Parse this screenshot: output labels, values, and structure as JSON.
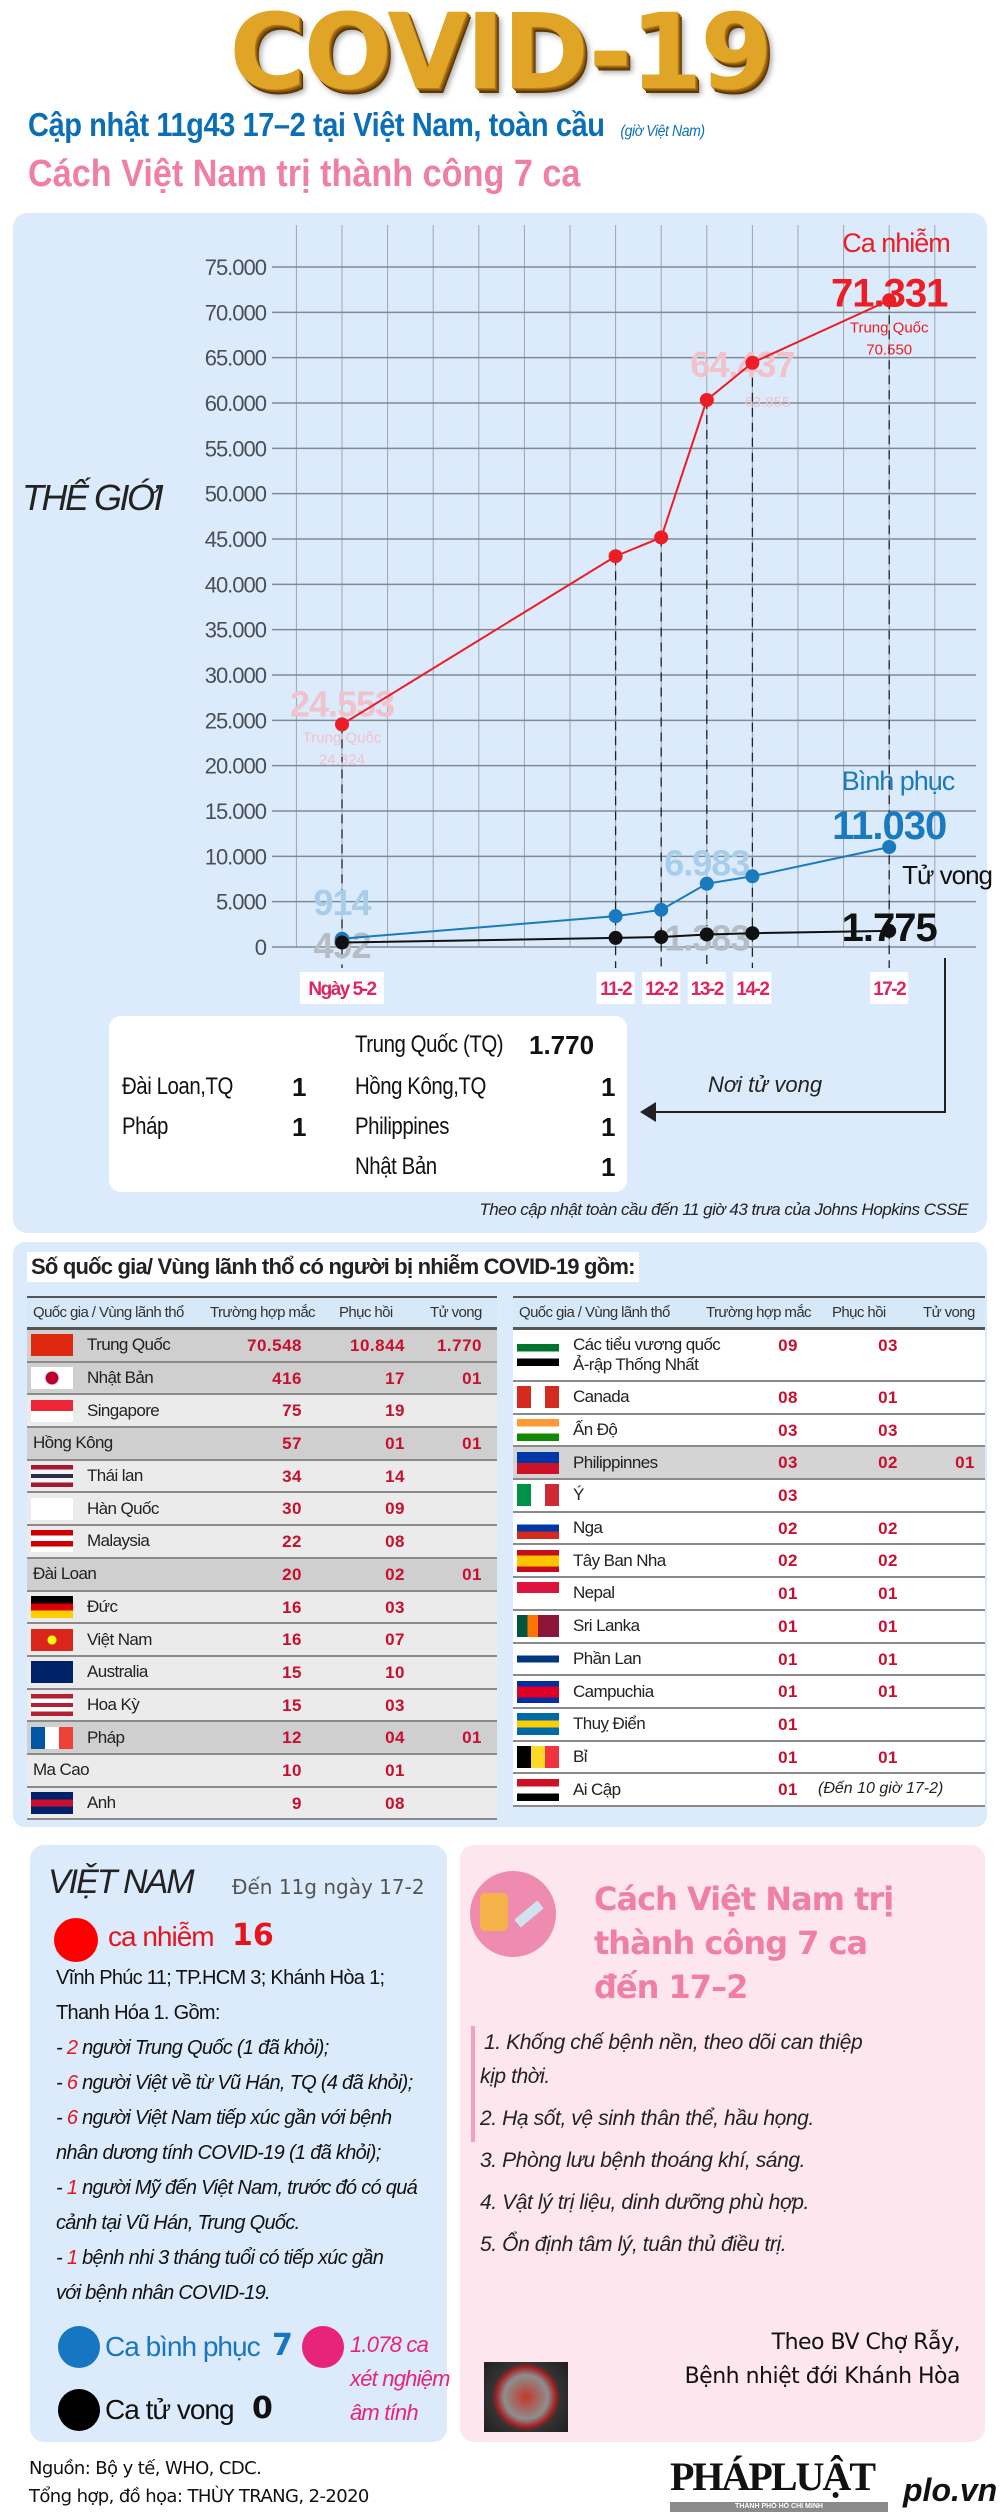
{
  "header": {
    "logo_title": "COVID-19",
    "subtitle": "Cập nhật 11g43 17–2 tại Việt Nam, toàn cầu",
    "subtitle_note": "(giờ Việt Nam)",
    "headline": "Cách Việt Nam trị thành công 7 ca"
  },
  "colors": {
    "cases": "#ee1c24",
    "recovered": "#1a7ac0",
    "deaths": "#111111",
    "cases_faint": "#f0c2cb",
    "recovered_faint": "#a8cdeb",
    "deaths_faint": "#b6bcc4",
    "date_label": "#e0245e"
  },
  "chart_data": {
    "type": "line",
    "title": "THẾ GIỚI",
    "xlabel": "",
    "ylabel": "",
    "ylim": [
      0,
      75000
    ],
    "yticks": [
      "0",
      "5.000",
      "10.000",
      "15.000",
      "20.000",
      "25.000",
      "30.000",
      "35.000",
      "40.000",
      "45.000",
      "50.000",
      "55.000",
      "60.000",
      "65.000",
      "70.000",
      "75.000"
    ],
    "x_days": [
      5,
      11,
      12,
      13,
      14,
      17
    ],
    "x_labels": [
      "Ngày 5-2",
      "11-2",
      "12-2",
      "13-2",
      "14-2",
      "17-2"
    ],
    "grid": true,
    "series": [
      {
        "name": "Ca nhiễm",
        "key": "cases",
        "values": [
          24553,
          43100,
          45170,
          60330,
          64437,
          71331
        ]
      },
      {
        "name": "Bình phục",
        "key": "recovered",
        "values": [
          914,
          3400,
          4100,
          6983,
          7800,
          11030
        ]
      },
      {
        "name": "Tử vong",
        "key": "deaths",
        "values": [
          492,
          1000,
          1100,
          1383,
          1520,
          1775
        ]
      }
    ],
    "annotations": [
      {
        "series": "cases",
        "index": 0,
        "text": "24.553",
        "sub": "Trung Quốc",
        "sub2": "24.324"
      },
      {
        "series": "cases",
        "index": 4,
        "text": "64.437",
        "sub2": "63.855"
      },
      {
        "series": "cases",
        "index": 5,
        "text": "71.331",
        "sub": "Trung Quốc",
        "sub2": "70.550"
      },
      {
        "series": "recovered",
        "index": 0,
        "text": "914"
      },
      {
        "series": "recovered",
        "index": 3,
        "text": "6.983"
      },
      {
        "series": "recovered",
        "index": 5,
        "text": "11.030"
      },
      {
        "series": "deaths",
        "index": 0,
        "text": "492"
      },
      {
        "series": "deaths",
        "index": 3,
        "text": "1.383"
      },
      {
        "series": "deaths",
        "index": 5,
        "text": "1.775"
      }
    ]
  },
  "deaths_by_place": {
    "title": "Nơi tử vong",
    "left": [
      {
        "place": "Đài Loan,TQ",
        "count": "1"
      },
      {
        "place": "Pháp",
        "count": "1"
      }
    ],
    "right": [
      {
        "place": "Trung Quốc (TQ)",
        "count": "1.770"
      },
      {
        "place": "Hồng Kông,TQ",
        "count": "1"
      },
      {
        "place": "Philippines",
        "count": "1"
      },
      {
        "place": "Nhật Bản",
        "count": "1"
      }
    ]
  },
  "chart_note": "Theo cập nhật toàn cầu đến 11 giờ 43  trưa của Johns Hopkins CSSE",
  "countries": {
    "title": "Số quốc gia/ Vùng lãnh thổ có người bị nhiễm COVID-19 gồm:",
    "headers": [
      "Quốc gia / Vùng lãnh thổ",
      "Trường hợp mắc",
      "Phục hồi",
      "Tử vong"
    ],
    "left": [
      {
        "name": "Trung Quốc",
        "cases": "70.548",
        "recovered": "10.844",
        "deaths": "1.770",
        "flag": [
          "#de2910",
          "#de2910"
        ]
      },
      {
        "name": "Nhật Bản",
        "cases": "416",
        "recovered": "17",
        "deaths": "01",
        "flag": [
          "#ffffff",
          "#ffffff"
        ]
      },
      {
        "name": "Singapore",
        "cases": "75",
        "recovered": "19",
        "deaths": "",
        "flag": [
          "#ee2536",
          "#ffffff"
        ]
      },
      {
        "name": "Hồng Kông",
        "cases": "57",
        "recovered": "01",
        "deaths": "01",
        "flag": []
      },
      {
        "name": "Thái lan",
        "cases": "34",
        "recovered": "14",
        "deaths": "",
        "flag": [
          "#a51931",
          "#f4f5f8",
          "#2d2a4a",
          "#f4f5f8",
          "#a51931"
        ]
      },
      {
        "name": "Hàn Quốc",
        "cases": "30",
        "recovered": "09",
        "deaths": "",
        "flag": [
          "#ffffff",
          "#ffffff"
        ]
      },
      {
        "name": "Malaysia",
        "cases": "22",
        "recovered": "08",
        "deaths": "",
        "flag": [
          "#cc0001",
          "#ffffff",
          "#cc0001",
          "#ffffff"
        ]
      },
      {
        "name": "Đài Loan",
        "cases": "20",
        "recovered": "02",
        "deaths": "01",
        "flag": []
      },
      {
        "name": "Đức",
        "cases": "16",
        "recovered": "03",
        "deaths": "",
        "flag": [
          "#000000",
          "#dd0000",
          "#ffce00"
        ]
      },
      {
        "name": "Việt Nam",
        "cases": "16",
        "recovered": "07",
        "deaths": "",
        "flag": [
          "#da251d",
          "#da251d"
        ]
      },
      {
        "name": "Australia",
        "cases": "15",
        "recovered": "10",
        "deaths": "",
        "flag": [
          "#012169",
          "#012169"
        ]
      },
      {
        "name": "Hoa Kỳ",
        "cases": "15",
        "recovered": "03",
        "deaths": "",
        "flag": [
          "#b22234",
          "#ffffff",
          "#b22234",
          "#ffffff",
          "#b22234"
        ]
      },
      {
        "name": "Pháp",
        "cases": "12",
        "recovered": "04",
        "deaths": "01",
        "flag": [
          "#0055a4",
          "#ffffff",
          "#ef4135"
        ],
        "vertical": true
      },
      {
        "name": "Ma Cao",
        "cases": "10",
        "recovered": "01",
        "deaths": "",
        "flag": []
      },
      {
        "name": "Anh",
        "cases": "9",
        "recovered": "08",
        "deaths": "",
        "flag": [
          "#012169",
          "#c8102e",
          "#012169"
        ]
      }
    ],
    "right": [
      {
        "name": "Các tiểu vương quốc Ả-rập Thống Nhất",
        "cases": "09",
        "recovered": "03",
        "deaths": "",
        "flag": [
          "#00732f",
          "#ffffff",
          "#000000"
        ],
        "tall": true
      },
      {
        "name": "Canada",
        "cases": "08",
        "recovered": "01",
        "deaths": "",
        "flag": [
          "#d52b1e",
          "#ffffff",
          "#d52b1e"
        ],
        "vertical": true
      },
      {
        "name": "Ấn Độ",
        "cases": "03",
        "recovered": "03",
        "deaths": "",
        "flag": [
          "#ff9933",
          "#ffffff",
          "#138808"
        ]
      },
      {
        "name": "Philippinnes",
        "cases": "03",
        "recovered": "02",
        "deaths": "01",
        "flag": [
          "#0038a8",
          "#ce1126"
        ]
      },
      {
        "name": "Ý",
        "cases": "03",
        "recovered": "",
        "deaths": "",
        "flag": [
          "#009246",
          "#ffffff",
          "#ce2b37"
        ],
        "vertical": true
      },
      {
        "name": "Nga",
        "cases": "02",
        "recovered": "02",
        "deaths": "",
        "flag": [
          "#ffffff",
          "#0039a6",
          "#d52b1e"
        ]
      },
      {
        "name": "Tây Ban Nha",
        "cases": "02",
        "recovered": "02",
        "deaths": "",
        "flag": [
          "#c60b1e",
          "#ffc400",
          "#ffc400",
          "#c60b1e"
        ]
      },
      {
        "name": "Nepal",
        "cases": "01",
        "recovered": "01",
        "deaths": "",
        "flag": [
          "#dc143c",
          "#ffffff"
        ]
      },
      {
        "name": "Sri Lanka",
        "cases": "01",
        "recovered": "01",
        "deaths": "",
        "flag": [
          "#005641",
          "#ff7300",
          "#8d153a",
          "#8d153a"
        ],
        "vertical": true
      },
      {
        "name": "Phần Lan",
        "cases": "01",
        "recovered": "01",
        "deaths": "",
        "flag": [
          "#ffffff",
          "#003580",
          "#ffffff"
        ]
      },
      {
        "name": "Campuchia",
        "cases": "01",
        "recovered": "01",
        "deaths": "",
        "flag": [
          "#032ea1",
          "#e00025",
          "#e00025",
          "#032ea1"
        ]
      },
      {
        "name": "Thuỵ Điển",
        "cases": "01",
        "recovered": "",
        "deaths": "",
        "flag": [
          "#006aa7",
          "#fecc00",
          "#006aa7"
        ]
      },
      {
        "name": "Bỉ",
        "cases": "01",
        "recovered": "01",
        "deaths": "",
        "flag": [
          "#000000",
          "#fdda24",
          "#ef3340"
        ],
        "vertical": true
      },
      {
        "name": "Ai Cập",
        "cases": "01",
        "recovered": "",
        "deaths": "",
        "flag": [
          "#ce1126",
          "#ffffff",
          "#000000"
        ]
      }
    ],
    "note": "(Đến 10 giờ 17-2)"
  },
  "vietnam": {
    "title": "VIỆT NAM",
    "as_of": "Đến 11g ngày 17-2",
    "cases_label": "ca nhiễm",
    "cases": "16",
    "lines": [
      {
        "num": "",
        "text": "Vĩnh Phúc 11; TP.HCM 3; Khánh Hòa 1;",
        "italic": false
      },
      {
        "num": "",
        "text": "Thanh Hóa 1. Gồm:",
        "italic": false
      },
      {
        "num": "2",
        "text": " người Trung Quốc (1 đã khỏi);",
        "italic": true
      },
      {
        "num": "6",
        "text": " người Việt về từ Vũ Hán, TQ (4 đã khỏi);",
        "italic": true
      },
      {
        "num": "6",
        "text": " người Việt Nam tiếp xúc gần với bệnh",
        "italic": true
      },
      {
        "num": "",
        "text": "nhân dương tính COVID-19 (1 đã khỏi);",
        "italic": true
      },
      {
        "num": "1",
        "text": " người Mỹ đến Việt Nam, trước đó có quá",
        "italic": true
      },
      {
        "num": "",
        "text": "cảnh tại Vũ Hán, Trung Quốc.",
        "italic": true
      },
      {
        "num": "1",
        "text": " bệnh nhi 3 tháng tuổi có tiếp xúc gần",
        "italic": true
      },
      {
        "num": "",
        "text": "với bệnh nhân COVID-19.",
        "italic": true
      }
    ],
    "recovered_label": "Ca bình phục",
    "recovered": "7",
    "deaths_label": "Ca tử vong",
    "deaths": "0",
    "negative_tests": [
      "1.078 ca",
      "xét nghiệm",
      "âm tính"
    ]
  },
  "treatment": {
    "title": [
      "Cách Việt Nam trị",
      "thành công 7 ca",
      "đến 17–2"
    ],
    "items": [
      "1. Khống chế bệnh nền, theo dõi can thiệp",
      "kịp thời.",
      "2. Hạ sốt, vệ sinh thân thể, hầu họng.",
      "3. Phòng lưu bệnh thoáng khí, sáng.",
      "4. Vật lý trị liệu, dinh dưỡng phù hợp.",
      "5. Ổn định tâm lý, tuân thủ điều trị."
    ],
    "source": [
      "Theo BV Chợ Rẫy,",
      "Bệnh nhiệt đới Khánh Hòa"
    ]
  },
  "footer": {
    "source": "Nguồn: Bộ y tế, WHO, CDC.",
    "credit": "Tổng hợp, đồ họa: THÙY TRANG, 2-2020",
    "brand": "PHÁPLUẬT",
    "brand_sub": "THÀNH PHỐ HỒ CHÍ MINH",
    "site": "plo.vn"
  }
}
